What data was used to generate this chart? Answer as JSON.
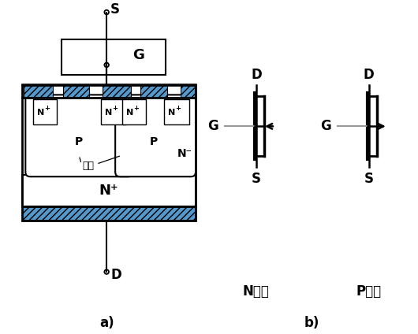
{
  "bg_color": "#ffffff",
  "blue_color": "#5599cc",
  "line_color": "#000000",
  "gray_line_color": "#999999",
  "fig_width": 5.3,
  "fig_height": 4.24,
  "dpi": 100,
  "labels": {
    "S_top": "S",
    "G_gate": "G",
    "D_bottom": "D",
    "N_minus": "N⁻",
    "N_plus_sub": "N⁺",
    "channel": "溝道",
    "N_channel_label": "N溝道",
    "P_channel_label": "P溝道",
    "a_label": "a)",
    "b_label": "b)",
    "D_nmos": "D",
    "S_nmos": "S",
    "G_nmos": "G",
    "D_pmos": "D",
    "S_pmos": "S",
    "G_pmos": "G"
  }
}
